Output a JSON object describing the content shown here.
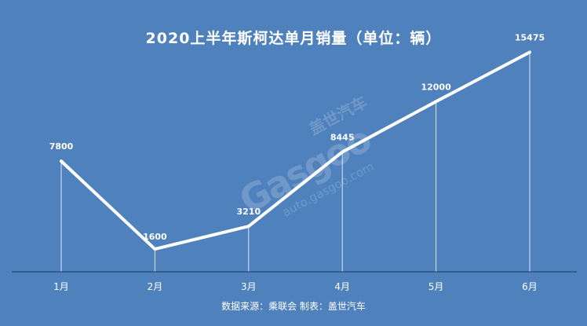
{
  "chart_data": {
    "type": "line",
    "title": "2020上半年斯柯达单月销量（单位：辆）",
    "categories": [
      "1月",
      "2月",
      "3月",
      "4月",
      "5月",
      "6月"
    ],
    "values": [
      7800,
      1600,
      3210,
      8445,
      12000,
      15475
    ],
    "ylim": [
      0,
      16500
    ],
    "grid": false,
    "data_labels": true
  },
  "source_text": "数据来源：乘联会  制表：盖世汽车",
  "watermark": {
    "brand": "Gasgoo",
    "cn": "盖世汽车",
    "url": "auto.gasgoo.com"
  },
  "colors": {
    "background": "#4f81bd",
    "line": "#ffffff",
    "text": "#ffffff",
    "axis": "#1f3864"
  }
}
